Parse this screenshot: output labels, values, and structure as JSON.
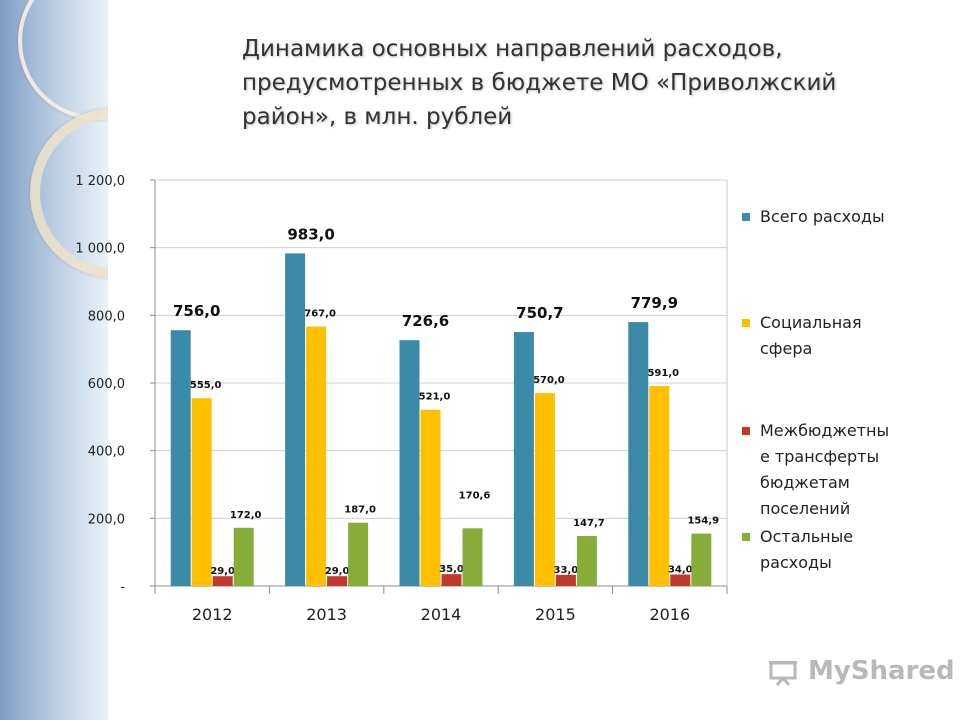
{
  "title_lines": [
    "Динамика основных направлений расходов,",
    "предусмотренных в бюджете МО «Приволжский",
    "район», в млн. рублей"
  ],
  "watermark": "MyShared",
  "colors": {
    "total": "#3b8ba8",
    "social": "#ffc000",
    "transfers": "#c0392b",
    "other": "#86ac3a"
  },
  "chart_data": {
    "type": "bar",
    "categories": [
      "2012",
      "2013",
      "2014",
      "2015",
      "2016"
    ],
    "series": [
      {
        "name": "Всего расходы",
        "values": [
          756.0,
          983.0,
          726.6,
          750.7,
          779.9
        ],
        "labels": [
          "756,0",
          "983,0",
          "726,6",
          "750,7",
          "779,9"
        ]
      },
      {
        "name": "Социальная сфера",
        "values": [
          555.0,
          767.0,
          521.0,
          570.0,
          591.0
        ],
        "labels": [
          "555,0",
          "767,0",
          "521,0",
          "570,0",
          "591,0"
        ]
      },
      {
        "name": "Межбюджетные трансферты бюджетам поселений",
        "legend_lines": [
          "Межбюджетны",
          "е трансферты",
          "бюджетам",
          "поселений"
        ],
        "values": [
          29.0,
          29.0,
          35.0,
          33.0,
          34.0
        ],
        "labels": [
          "29,0",
          "29,0",
          "35,0",
          "33,0",
          "34,0"
        ]
      },
      {
        "name": "Остальные расходы",
        "legend_lines": [
          "Остальные",
          "расходы"
        ],
        "values": [
          172.0,
          187.0,
          170.6,
          147.7,
          154.9
        ],
        "labels": [
          "172,0",
          "187,0",
          "170,6",
          "147,7",
          "154,9"
        ]
      }
    ],
    "ylim": [
      0,
      1200
    ],
    "yticks": [
      0,
      200,
      400,
      600,
      800,
      1000,
      1200
    ],
    "ytick_labels": [
      "-",
      "200,0",
      "400,0",
      "600,0",
      "800,0",
      "1 000,0",
      "1 200,0"
    ],
    "grid": true,
    "legend_position": "right"
  }
}
